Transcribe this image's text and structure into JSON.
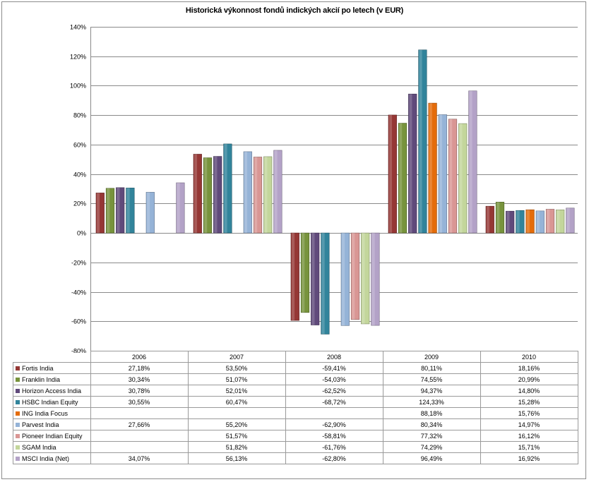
{
  "chart_data": {
    "type": "bar",
    "title": "Historická výkonnost fondů indických  akcií po letech (v EUR)",
    "categories": [
      "2006",
      "2007",
      "2008",
      "2009",
      "2010"
    ],
    "ylim": [
      -80,
      140
    ],
    "yticks": [
      140,
      120,
      100,
      80,
      60,
      40,
      20,
      0,
      -20,
      -40,
      -60,
      -80
    ],
    "ytick_labels": [
      "140%",
      "120%",
      "100%",
      "80%",
      "60%",
      "40%",
      "20%",
      "0%",
      "-20%",
      "-40%",
      "-60%",
      "-80%"
    ],
    "grid": true,
    "legend": "data table below chart",
    "series": [
      {
        "name": "Fortis India",
        "color": "#953735",
        "values": [
          27.18,
          53.5,
          -59.41,
          80.11,
          18.16
        ],
        "labels": [
          "27,18%",
          "53,50%",
          "-59,41%",
          "80,11%",
          "18,16%"
        ]
      },
      {
        "name": "Franklin India",
        "color": "#77933c",
        "values": [
          30.34,
          51.07,
          -54.03,
          74.55,
          20.99
        ],
        "labels": [
          "30,34%",
          "51,07%",
          "-54,03%",
          "74,55%",
          "20,99%"
        ]
      },
      {
        "name": "Horizon Access India",
        "color": "#604a7b",
        "values": [
          30.78,
          52.01,
          -62.52,
          94.37,
          14.8
        ],
        "labels": [
          "30,78%",
          "52,01%",
          "-62,52%",
          "94,37%",
          "14,80%"
        ]
      },
      {
        "name": "HSBC Indian Equity",
        "color": "#31849b",
        "values": [
          30.55,
          60.47,
          -68.72,
          124.33,
          15.28
        ],
        "labels": [
          "30,55%",
          "60,47%",
          "-68,72%",
          "124,33%",
          "15,28%"
        ]
      },
      {
        "name": "ING India Focus",
        "color": "#e46c0a",
        "values": [
          null,
          null,
          null,
          88.18,
          15.76
        ],
        "labels": [
          "",
          "",
          "",
          "88,18%",
          "15,76%"
        ]
      },
      {
        "name": "Parvest India",
        "color": "#95b3d7",
        "values": [
          27.66,
          55.2,
          -62.9,
          80.34,
          14.97
        ],
        "labels": [
          "27,66%",
          "55,20%",
          "-62,90%",
          "80,34%",
          "14,97%"
        ]
      },
      {
        "name": "Pioneer Indian Equity",
        "color": "#d99694",
        "values": [
          null,
          51.57,
          -58.81,
          77.32,
          16.12
        ],
        "labels": [
          "",
          "51,57%",
          "-58,81%",
          "77,32%",
          "16,12%"
        ]
      },
      {
        "name": "SGAM India",
        "color": "#c3d69b",
        "values": [
          null,
          51.82,
          -61.76,
          74.29,
          15.71
        ],
        "labels": [
          "",
          "51,82%",
          "-61,76%",
          "74,29%",
          "15,71%"
        ]
      },
      {
        "name": "MSCI India (Net)",
        "color": "#b3a2c7",
        "values": [
          34.07,
          56.13,
          -62.8,
          96.49,
          16.92
        ],
        "labels": [
          "34,07%",
          "56,13%",
          "-62,80%",
          "96,49%",
          "16,92%"
        ]
      }
    ]
  }
}
